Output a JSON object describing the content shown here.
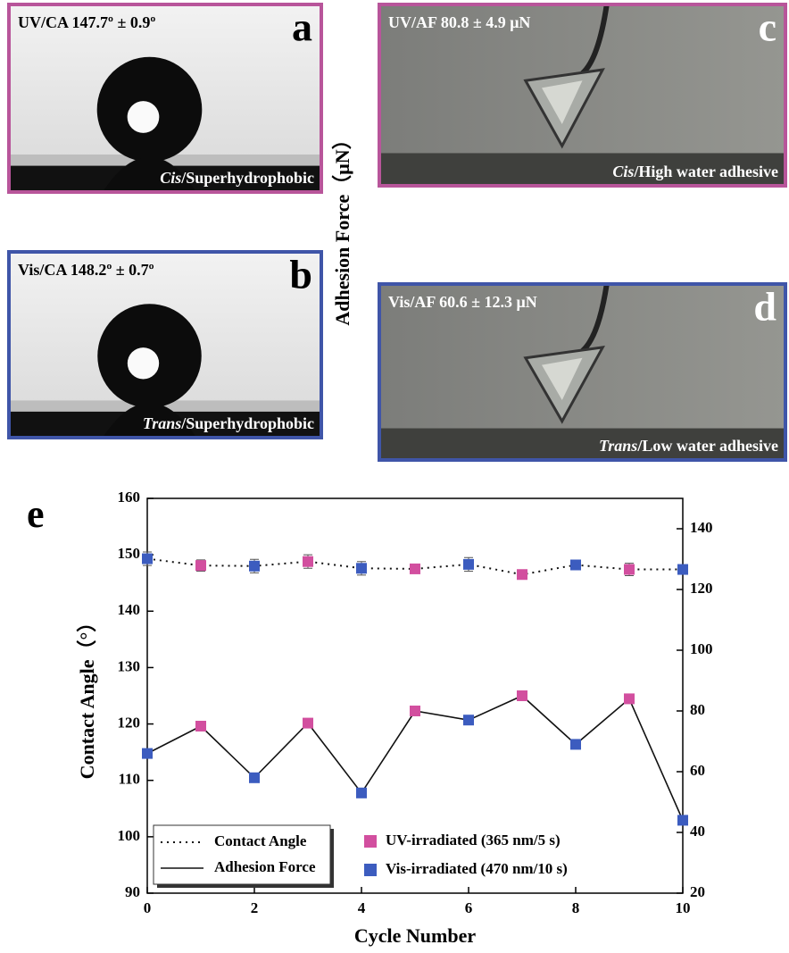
{
  "panels": [
    {
      "letter": "a",
      "measure": "UV/CA 147.7º ± 0.9º",
      "state_italic": "Cis",
      "state": "/Superhydrophobic"
    },
    {
      "letter": "b",
      "measure": "Vis/CA 148.2º ± 0.7º",
      "state_italic": "Trans",
      "state": "/Superhydrophobic"
    },
    {
      "letter": "c",
      "measure": "UV/AF 80.8 ± 4.9 μN",
      "state_italic": "Cis",
      "state": "/High water adhesive"
    },
    {
      "letter": "d",
      "measure": "Vis/AF 60.6 ± 12.3 μN",
      "state_italic": "Trans",
      "state": "/Low water adhesive"
    }
  ],
  "chart_data": {
    "type": "line",
    "panel_letter": "e",
    "xlabel": "Cycle Number",
    "ylabel": "Contact Angle（°）",
    "y2label": "Adhesion Force（μN）",
    "x": [
      0,
      1,
      2,
      3,
      4,
      5,
      6,
      7,
      8,
      9,
      10
    ],
    "xlim": [
      0,
      10
    ],
    "xticks": [
      0,
      2,
      4,
      6,
      8,
      10
    ],
    "ylim": [
      90,
      160
    ],
    "yticks": [
      90,
      100,
      110,
      120,
      130,
      140,
      150,
      160
    ],
    "y2lim": [
      20,
      150
    ],
    "y2ticks": [
      20,
      40,
      60,
      80,
      100,
      120,
      140
    ],
    "markers": [
      {
        "name": "UV-irradiated (365 nm/5 s)",
        "color": "#d24f9f"
      },
      {
        "name": "Vis-irradiated (470 nm/10 s)",
        "color": "#3c5cbf"
      }
    ],
    "point_marker": [
      1,
      0,
      1,
      0,
      1,
      0,
      1,
      0,
      1,
      0,
      1
    ],
    "series": [
      {
        "name": "Contact Angle",
        "color": "#111111",
        "dash": "dotted",
        "values": [
          149.3,
          148.1,
          148.0,
          148.8,
          147.6,
          147.5,
          148.3,
          146.5,
          148.2,
          147.4,
          147.4
        ],
        "errors": [
          1.2,
          1.0,
          1.2,
          1.2,
          1.2,
          0.6,
          1.2,
          0.6,
          0.6,
          1.1,
          0.8
        ]
      },
      {
        "name": "Adhesion Force",
        "color": "#111111",
        "dash": "solid",
        "axis": "y2",
        "values": [
          66,
          75,
          58,
          76,
          53,
          80,
          77,
          85,
          69,
          84,
          44
        ]
      }
    ]
  }
}
